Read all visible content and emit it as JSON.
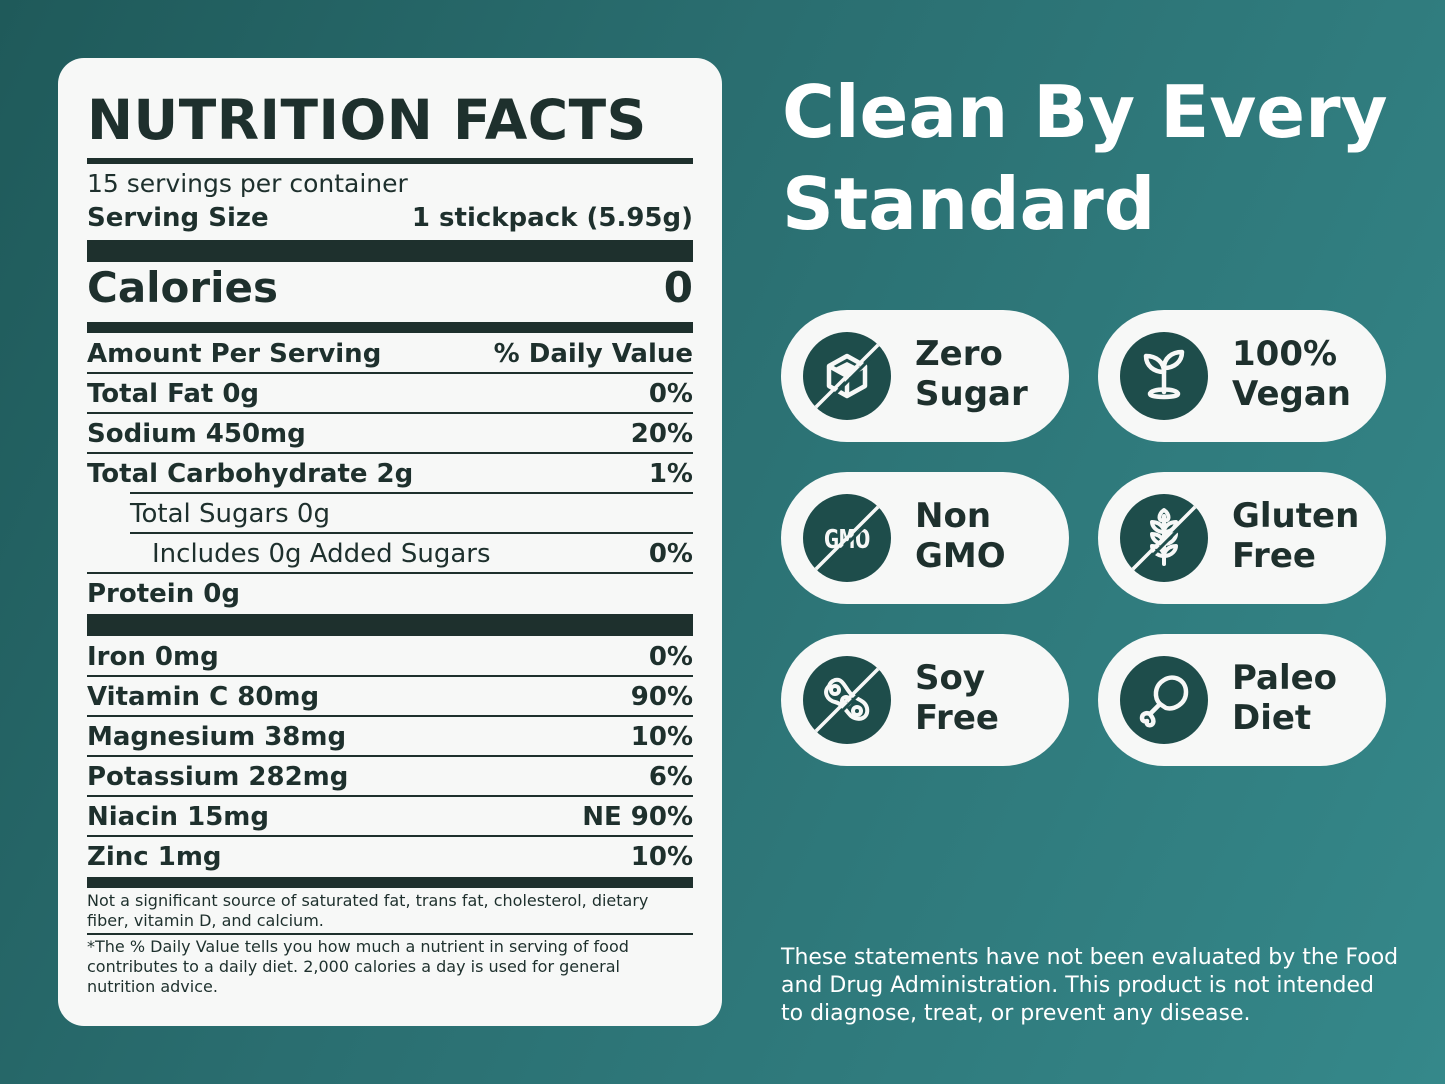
{
  "nutrition": {
    "title": "NUTRITION FACTS",
    "servings_per_container": "15 servings per container",
    "serving_size_label": "Serving Size",
    "serving_size_value": "1 stickpack (5.95g)",
    "calories_label": "Calories",
    "calories_value": "0",
    "amount_per_serving": "Amount Per Serving",
    "daily_value_header": "% Daily Value",
    "rows": [
      {
        "label": "Total Fat 0g",
        "value": "0%"
      },
      {
        "label": "Sodium 450mg",
        "value": "20%"
      },
      {
        "label": "Total Carbohydrate 2g",
        "value": "1%"
      },
      {
        "label": "Total Sugars 0g",
        "value": ""
      },
      {
        "label": "Includes 0g Added Sugars",
        "value": "0%"
      },
      {
        "label": "Protein 0g",
        "value": ""
      }
    ],
    "vitamins": [
      {
        "label": "Iron 0mg",
        "value": "0%"
      },
      {
        "label": "Vitamin C 80mg",
        "value": "90%"
      },
      {
        "label": "Magnesium 38mg",
        "value": "10%"
      },
      {
        "label": "Potassium 282mg",
        "value": "6%"
      },
      {
        "label": "Niacin 15mg",
        "value": "NE 90%"
      },
      {
        "label": "Zinc 1mg",
        "value": "10%"
      }
    ],
    "footnote_1": "Not a significant source of saturated fat, trans fat, cholesterol, dietary fiber, vitamin D, and calcium.",
    "footnote_2": "*The % Daily Value tells you how much a nutrient in serving of food contributes to a daily diet. 2,000 calories a day is used for general nutrition advice."
  },
  "headline": {
    "line1": "Clean By Every",
    "line2": "Standard"
  },
  "badges": [
    {
      "line1": "Zero",
      "line2": "Sugar",
      "icon": "sugar-cube-crossed-icon"
    },
    {
      "line1": "100%",
      "line2": "Vegan",
      "icon": "sprout-icon"
    },
    {
      "line1": "Non",
      "line2": "GMO",
      "icon": "gmo-crossed-icon",
      "icon_text": "GMO"
    },
    {
      "line1": "Gluten",
      "line2": "Free",
      "icon": "wheat-crossed-icon"
    },
    {
      "line1": "Soy",
      "line2": "Free",
      "icon": "soybean-crossed-icon"
    },
    {
      "line1": "Paleo",
      "line2": "Diet",
      "icon": "drumstick-icon"
    }
  ],
  "disclaimer": "These statements have not been evaluated by the Food and Drug Administration. This product is not intended to diagnose, treat, or prevent any disease.",
  "colors": {
    "background_dark": "#1f5a5a",
    "background_light": "#35888a",
    "icon_circle": "#1e4d4b",
    "text_dark": "#1e302d",
    "card": "#f7f8f7"
  }
}
